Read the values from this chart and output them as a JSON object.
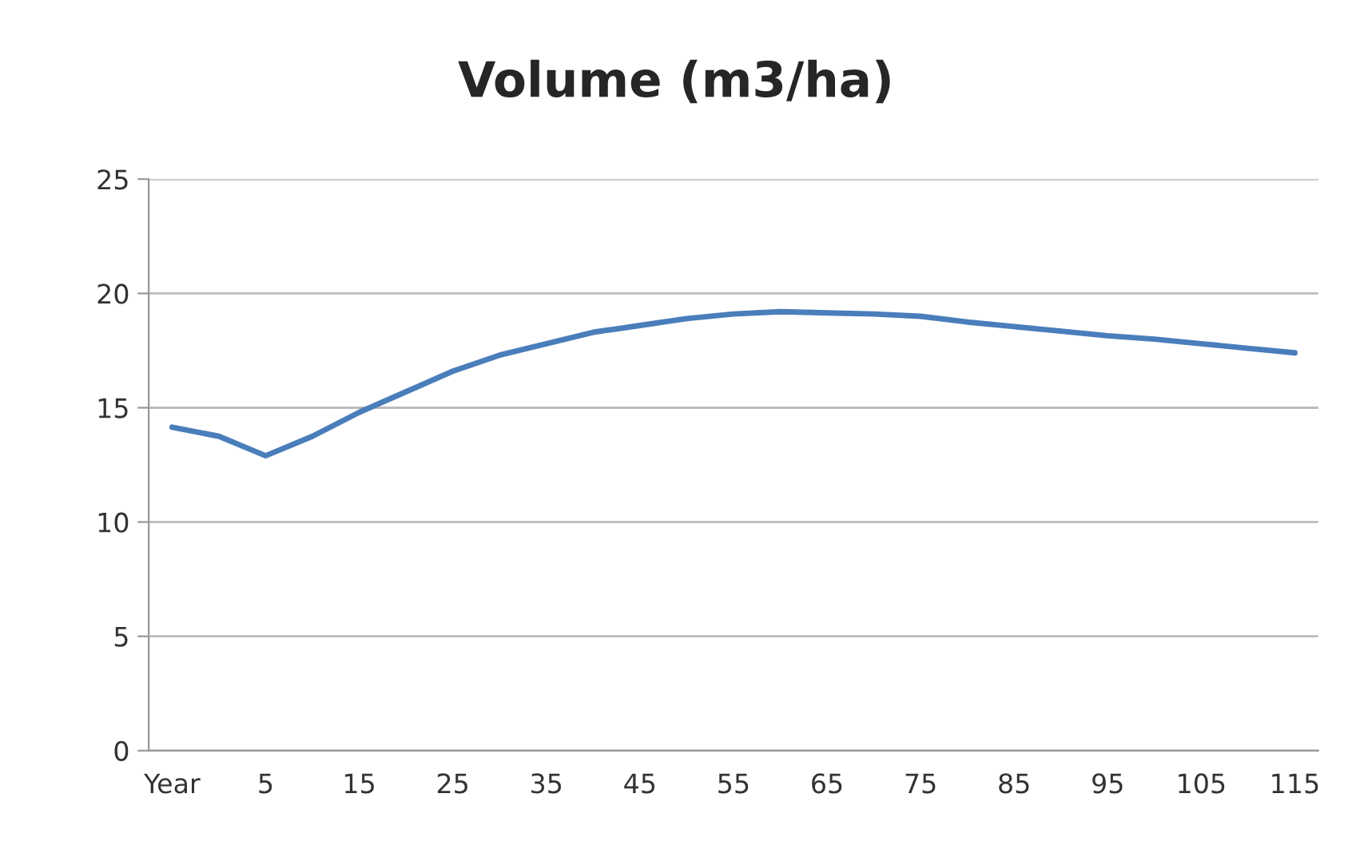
{
  "chart_data": {
    "type": "line",
    "title": "Volume (m3/ha)",
    "categories": [
      "Year",
      null,
      "5",
      null,
      "15",
      null,
      "25",
      null,
      "35",
      null,
      "45",
      null,
      "55",
      null,
      "65",
      null,
      "75",
      null,
      "85",
      null,
      "95",
      null,
      "105",
      null,
      "115"
    ],
    "series": [
      {
        "color": "#4a7ebb",
        "values": [
          14.15,
          13.75,
          12.9,
          13.75,
          14.8,
          15.7,
          16.6,
          17.3,
          17.8,
          18.3,
          18.6,
          18.9,
          19.1,
          19.2,
          19.15,
          19.1,
          19.0,
          18.75,
          18.55,
          18.35,
          18.15,
          18.0,
          17.8,
          17.6,
          17.4
        ]
      }
    ],
    "ylim": [
      0,
      25
    ],
    "yticks": [
      0,
      5,
      10,
      15,
      20,
      25
    ],
    "grid": "y",
    "legend": false,
    "marker": "none",
    "line_style": "solid"
  }
}
